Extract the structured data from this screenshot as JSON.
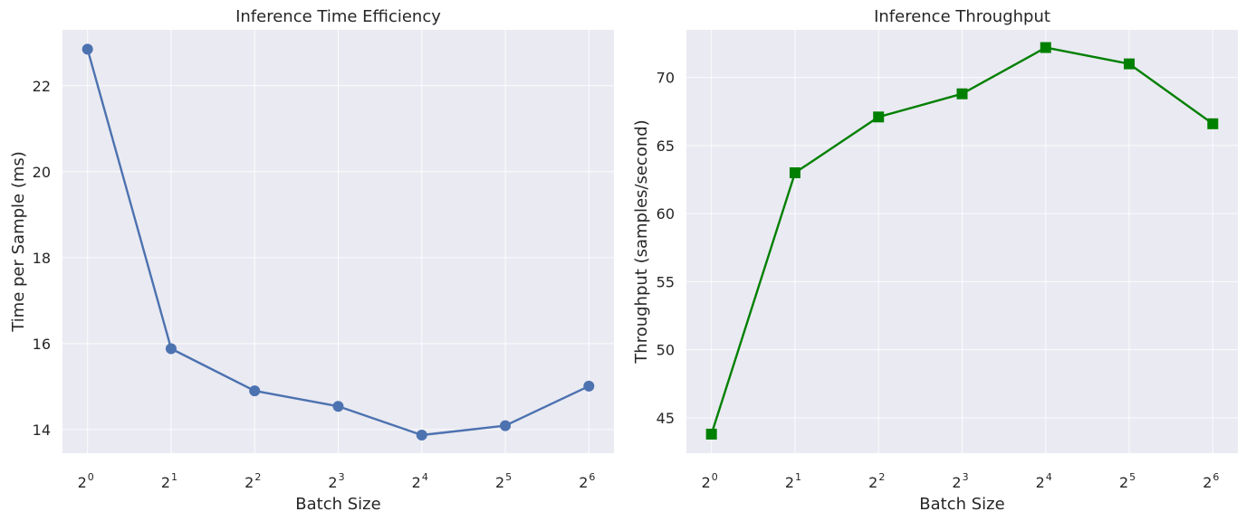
{
  "chart_data": [
    {
      "type": "line",
      "title": "Inference Time Efficiency",
      "xlabel": "Batch Size",
      "ylabel": "Time per Sample (ms)",
      "x_scale": "log2",
      "x": [
        1,
        2,
        4,
        8,
        16,
        32,
        64
      ],
      "x_tick_labels": [
        {
          "base": "2",
          "exp": "0"
        },
        {
          "base": "2",
          "exp": "1"
        },
        {
          "base": "2",
          "exp": "2"
        },
        {
          "base": "2",
          "exp": "3"
        },
        {
          "base": "2",
          "exp": "4"
        },
        {
          "base": "2",
          "exp": "5"
        },
        {
          "base": "2",
          "exp": "6"
        }
      ],
      "ylim": [
        13.45,
        23.3
      ],
      "y_ticks": [
        14,
        16,
        18,
        20,
        22
      ],
      "grid": true,
      "series": [
        {
          "values": [
            22.85,
            15.88,
            14.9,
            14.54,
            13.87,
            14.09,
            15.01
          ],
          "color": "#4c72b0",
          "marker": "circle"
        }
      ]
    },
    {
      "type": "line",
      "title": "Inference Throughput",
      "xlabel": "Batch Size",
      "ylabel": "Throughput (samples/second)",
      "x_scale": "log2",
      "x": [
        1,
        2,
        4,
        8,
        16,
        32,
        64
      ],
      "x_tick_labels": [
        {
          "base": "2",
          "exp": "0"
        },
        {
          "base": "2",
          "exp": "1"
        },
        {
          "base": "2",
          "exp": "2"
        },
        {
          "base": "2",
          "exp": "3"
        },
        {
          "base": "2",
          "exp": "4"
        },
        {
          "base": "2",
          "exp": "5"
        },
        {
          "base": "2",
          "exp": "6"
        }
      ],
      "ylim": [
        42.4,
        73.5
      ],
      "y_ticks": [
        45,
        50,
        55,
        60,
        65,
        70
      ],
      "grid": true,
      "series": [
        {
          "values": [
            43.8,
            63.0,
            67.1,
            68.8,
            72.2,
            71.0,
            66.6
          ],
          "color": "#008000",
          "marker": "square"
        }
      ]
    }
  ]
}
